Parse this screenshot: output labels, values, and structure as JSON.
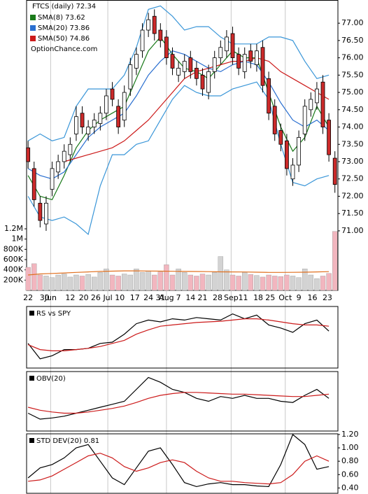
{
  "chart_data": [
    {
      "type": "candlestick",
      "title": "FTCS (daily) 72.34",
      "annotation": "OptionChance.com",
      "x": [
        0,
        2,
        4,
        6,
        8,
        10,
        12,
        14,
        16,
        18,
        20,
        22,
        24,
        26,
        28,
        30,
        32,
        34,
        36,
        38,
        40,
        42,
        44,
        46,
        48,
        50,
        52,
        54,
        56,
        58,
        60,
        62,
        64,
        66,
        68,
        70,
        72,
        74,
        76,
        78,
        80,
        82,
        84,
        86,
        88,
        90,
        92,
        94,
        96,
        98,
        100,
        102
      ],
      "open": [
        73.4,
        72.8,
        71.8,
        71.2,
        72.2,
        72.7,
        73.0,
        73.2,
        73.8,
        74.4,
        73.8,
        74.0,
        74.1,
        74.4,
        75.1,
        74.6,
        74.2,
        75.1,
        75.7,
        76.2,
        76.8,
        77.2,
        76.8,
        76.6,
        76.1,
        75.5,
        75.6,
        76.0,
        75.7,
        75.5,
        75.0,
        75.6,
        76.0,
        76.2,
        76.7,
        76.1,
        75.6,
        76.2,
        75.8,
        76.3,
        75.4,
        74.6,
        73.9,
        73.6,
        72.5,
        72.9,
        73.8,
        74.5,
        74.7,
        75.3,
        74.2,
        73.1
      ],
      "high": [
        73.6,
        73.0,
        72.0,
        72.0,
        73.0,
        73.2,
        73.5,
        73.7,
        74.6,
        74.6,
        74.2,
        74.4,
        74.6,
        75.1,
        75.3,
        74.8,
        75.2,
        76.0,
        76.3,
        77.0,
        77.3,
        77.4,
        77.0,
        76.8,
        76.3,
        75.9,
        76.1,
        76.2,
        75.9,
        75.7,
        75.8,
        76.2,
        76.5,
        76.8,
        76.9,
        76.3,
        76.3,
        76.4,
        76.4,
        76.5,
        75.6,
        74.8,
        74.1,
        73.8,
        73.1,
        73.9,
        74.8,
        75.0,
        75.3,
        75.5,
        74.4,
        73.3
      ],
      "low": [
        72.8,
        71.7,
        71.1,
        71.0,
        72.0,
        72.5,
        72.8,
        73.0,
        73.6,
        73.8,
        73.6,
        73.8,
        73.9,
        74.2,
        74.6,
        73.8,
        74.0,
        74.9,
        75.5,
        76.0,
        76.6,
        76.5,
        76.3,
        75.8,
        75.5,
        75.3,
        75.4,
        75.4,
        75.2,
        74.9,
        74.8,
        75.4,
        75.8,
        76.0,
        75.8,
        75.5,
        75.4,
        75.7,
        75.6,
        75.0,
        74.2,
        73.6,
        73.3,
        72.6,
        72.3,
        72.7,
        73.6,
        74.3,
        74.5,
        73.8,
        73.0,
        72.1
      ],
      "close": [
        73.0,
        71.9,
        71.3,
        71.8,
        72.8,
        73.0,
        73.3,
        73.5,
        74.3,
        74.0,
        74.0,
        74.2,
        74.4,
        74.9,
        74.8,
        74.0,
        75.0,
        75.8,
        76.1,
        76.8,
        77.1,
        76.7,
        76.5,
        76.0,
        75.7,
        75.7,
        75.9,
        75.6,
        75.4,
        75.1,
        75.6,
        76.0,
        76.3,
        76.6,
        76.0,
        75.7,
        76.1,
        75.9,
        76.2,
        75.2,
        74.4,
        73.8,
        73.5,
        72.8,
        72.9,
        73.7,
        74.6,
        74.8,
        75.1,
        74.0,
        73.2,
        72.34
      ],
      "up_color": "#ffffff",
      "down_color": "#cc2a2a",
      "overlays": [
        {
          "name": "SMA(8) 73.62",
          "color": "#1a7a1a",
          "x": [
            0,
            4,
            8,
            12,
            16,
            20,
            24,
            28,
            32,
            36,
            40,
            44,
            48,
            52,
            56,
            60,
            64,
            68,
            72,
            76,
            80,
            84,
            88,
            92,
            96,
            100
          ],
          "values": [
            72.6,
            72.0,
            71.9,
            72.6,
            73.4,
            73.9,
            74.2,
            74.4,
            74.6,
            75.4,
            76.2,
            76.6,
            76.1,
            75.7,
            75.6,
            75.4,
            75.8,
            76.2,
            76.0,
            76.0,
            75.0,
            74.0,
            73.3,
            73.7,
            74.6,
            74.0
          ]
        },
        {
          "name": "SMA(20) 73.86",
          "color": "#2a6fd0",
          "x": [
            0,
            4,
            8,
            12,
            16,
            20,
            24,
            28,
            32,
            36,
            40,
            44,
            48,
            52,
            56,
            60,
            64,
            68,
            72,
            76,
            80,
            84,
            88,
            92,
            96,
            100
          ],
          "values": [
            72.8,
            72.6,
            72.5,
            72.7,
            73.2,
            73.7,
            74.0,
            74.2,
            74.4,
            74.9,
            75.5,
            75.9,
            76.2,
            76.1,
            75.9,
            75.7,
            75.6,
            75.8,
            75.9,
            75.8,
            75.3,
            74.7,
            74.2,
            74.0,
            74.2,
            73.9
          ]
        },
        {
          "name": "SMA(50) 74.86",
          "color": "#cc1a1a",
          "x": [
            0,
            4,
            8,
            12,
            16,
            20,
            24,
            28,
            32,
            36,
            40,
            44,
            48,
            52,
            56,
            60,
            64,
            68,
            72,
            76,
            80,
            84,
            88,
            92,
            96,
            100
          ],
          "values": [
            null,
            null,
            null,
            73.0,
            73.1,
            73.2,
            73.3,
            73.4,
            73.6,
            73.9,
            74.2,
            74.6,
            75.0,
            75.4,
            75.6,
            75.7,
            75.8,
            75.9,
            75.9,
            76.0,
            75.9,
            75.6,
            75.4,
            75.2,
            75.0,
            74.8
          ]
        },
        {
          "color": "#3a96d8",
          "x": [
            0,
            4,
            8,
            12,
            16,
            20,
            24,
            28,
            32,
            36,
            40,
            44,
            48,
            52,
            56,
            60,
            64,
            68,
            72,
            76,
            80,
            84,
            88,
            92,
            96,
            100
          ],
          "values": [
            73.6,
            73.8,
            73.6,
            73.7,
            74.6,
            75.1,
            75.1,
            75.1,
            75.5,
            76.3,
            77.4,
            77.5,
            77.2,
            76.8,
            76.9,
            76.9,
            76.6,
            76.4,
            76.4,
            76.4,
            76.6,
            76.6,
            76.5,
            75.9,
            75.4,
            75.5
          ]
        },
        {
          "color": "#3a96d8",
          "x": [
            0,
            4,
            8,
            12,
            16,
            20,
            24,
            28,
            32,
            36,
            40,
            44,
            48,
            52,
            56,
            60,
            64,
            68,
            72,
            76,
            80,
            84,
            88,
            92,
            96,
            100
          ],
          "values": [
            72.0,
            71.4,
            71.3,
            71.4,
            71.2,
            70.9,
            72.3,
            73.2,
            73.2,
            73.5,
            73.6,
            74.2,
            74.8,
            75.2,
            75.0,
            74.9,
            74.9,
            75.1,
            75.2,
            75.3,
            74.8,
            73.5,
            72.4,
            72.3,
            72.5,
            72.6
          ]
        }
      ],
      "xlim": [
        -0.5,
        103
      ],
      "xticks": [
        {
          "value": 0,
          "label": "22"
        },
        {
          "value": 5.5,
          "label": "30"
        },
        {
          "value": 7.5,
          "label": "Jun"
        },
        {
          "value": 14,
          "label": "12"
        },
        {
          "value": 18.5,
          "label": "20"
        },
        {
          "value": 22.5,
          "label": "26"
        },
        {
          "value": 26.5,
          "label": "Jul"
        },
        {
          "value": 30.5,
          "label": "10"
        },
        {
          "value": 35.5,
          "label": "17"
        },
        {
          "value": 40,
          "label": "24"
        },
        {
          "value": 44,
          "label": "31"
        },
        {
          "value": 46,
          "label": "Aug"
        },
        {
          "value": 50,
          "label": "7"
        },
        {
          "value": 54,
          "label": "14"
        },
        {
          "value": 58,
          "label": "21"
        },
        {
          "value": 63,
          "label": "28"
        },
        {
          "value": 67.5,
          "label": "Sep"
        },
        {
          "value": 71.5,
          "label": "11"
        },
        {
          "value": 76.5,
          "label": "18"
        },
        {
          "value": 80.5,
          "label": "25"
        },
        {
          "value": 85.5,
          "label": "Oct"
        },
        {
          "value": 90,
          "label": "9"
        },
        {
          "value": 94.5,
          "label": "16"
        },
        {
          "value": 99.5,
          "label": "23"
        }
      ],
      "ylim": [
        69.28,
        77.67
      ],
      "yticks": [
        {
          "value": 71,
          "label": "71.00"
        },
        {
          "value": 71.5,
          "label": "71.50"
        },
        {
          "value": 72,
          "label": "72.00"
        },
        {
          "value": 72.5,
          "label": "72.50"
        },
        {
          "value": 73,
          "label": "73.00"
        },
        {
          "value": 73.5,
          "label": "73.50"
        },
        {
          "value": 74,
          "label": "74.00"
        },
        {
          "value": 74.5,
          "label": "74.50"
        },
        {
          "value": 75,
          "label": "75.00"
        },
        {
          "value": 75.5,
          "label": "75.50"
        },
        {
          "value": 76,
          "label": "76.00"
        },
        {
          "value": 76.5,
          "label": "76.50"
        },
        {
          "value": 77,
          "label": "77.00"
        }
      ]
    },
    {
      "type": "bar",
      "x": [
        0,
        2,
        4,
        6,
        8,
        10,
        12,
        14,
        16,
        18,
        20,
        22,
        24,
        26,
        28,
        30,
        32,
        34,
        36,
        38,
        40,
        42,
        44,
        46,
        48,
        50,
        52,
        54,
        56,
        58,
        60,
        62,
        64,
        66,
        68,
        70,
        72,
        74,
        76,
        78,
        80,
        82,
        84,
        86,
        88,
        90,
        92,
        94,
        96,
        98,
        100,
        102
      ],
      "values": [
        450000,
        520000,
        300000,
        280000,
        250000,
        300000,
        320000,
        260000,
        300000,
        280000,
        310000,
        260000,
        350000,
        420000,
        300000,
        280000,
        320000,
        300000,
        420000,
        350000,
        380000,
        300000,
        360000,
        500000,
        300000,
        420000,
        350000,
        300000,
        280000,
        320000,
        300000,
        350000,
        660000,
        400000,
        300000,
        280000,
        350000,
        310000,
        290000,
        260000,
        300000,
        280000,
        270000,
        300000,
        280000,
        250000,
        420000,
        300000,
        230000,
        280000,
        330000,
        1150000
      ],
      "up_color": "#d3d3d3",
      "down_color": "#f2b6bf",
      "average": {
        "color": "#e07020",
        "x": [
          0,
          4,
          8,
          12,
          16,
          20,
          24,
          28,
          32,
          36,
          40,
          44,
          48,
          52,
          56,
          60,
          64,
          68,
          72,
          76,
          80,
          84,
          88,
          92,
          96,
          100
        ],
        "values": [
          300000,
          320000,
          330000,
          340000,
          350000,
          360000,
          370000,
          375000,
          380000,
          380000,
          378000,
          375000,
          372000,
          370000,
          368000,
          365000,
          362000,
          360000,
          358000,
          355000,
          350000,
          350000,
          352000,
          355000,
          360000,
          365000
        ]
      },
      "ylim": [
        0,
        1200000
      ],
      "yticks": [
        {
          "value": 200000,
          "label": "200K"
        },
        {
          "value": 400000,
          "label": "400K"
        },
        {
          "value": 600000,
          "label": "600K"
        },
        {
          "value": 800000,
          "label": "800K"
        },
        {
          "value": 1000000,
          "label": "1M"
        },
        {
          "value": 1200000,
          "label": "1.2M"
        }
      ]
    },
    {
      "type": "line",
      "title": "RS vs SPY",
      "ylim": [
        0,
        100
      ],
      "x": [
        0,
        4,
        8,
        12,
        16,
        20,
        24,
        28,
        32,
        36,
        40,
        44,
        48,
        52,
        56,
        60,
        64,
        68,
        72,
        76,
        80,
        84,
        88,
        92,
        96,
        100
      ],
      "series": [
        {
          "color": "#000000",
          "values": [
            40,
            15,
            20,
            30,
            30,
            32,
            40,
            42,
            55,
            72,
            78,
            75,
            80,
            78,
            82,
            80,
            78,
            88,
            80,
            86,
            70,
            65,
            58,
            72,
            78,
            60
          ]
        },
        {
          "color": "#cc1a1a",
          "values": [
            38,
            30,
            28,
            28,
            30,
            32,
            35,
            40,
            45,
            55,
            62,
            68,
            70,
            72,
            74,
            75,
            76,
            78,
            80,
            80,
            78,
            75,
            72,
            70,
            70,
            68
          ]
        }
      ]
    },
    {
      "type": "line",
      "title": "OBV(20)",
      "ylim": [
        0,
        100
      ],
      "x": [
        0,
        4,
        8,
        12,
        16,
        20,
        24,
        28,
        32,
        36,
        40,
        44,
        48,
        52,
        56,
        60,
        64,
        68,
        72,
        76,
        80,
        84,
        88,
        92,
        96,
        100
      ],
      "series": [
        {
          "color": "#000000",
          "values": [
            30,
            20,
            22,
            25,
            30,
            35,
            40,
            45,
            50,
            70,
            90,
            82,
            70,
            65,
            55,
            50,
            58,
            55,
            60,
            55,
            55,
            50,
            48,
            60,
            70,
            55
          ]
        },
        {
          "color": "#cc1a1a",
          "values": [
            40,
            35,
            32,
            30,
            30,
            32,
            35,
            38,
            42,
            48,
            55,
            60,
            63,
            65,
            65,
            64,
            63,
            62,
            62,
            61,
            60,
            59,
            58,
            58,
            60,
            62
          ]
        }
      ]
    },
    {
      "type": "line",
      "title": "STD DEV(20) 0.81",
      "ylim": [
        0.32,
        1.21
      ],
      "yticks": [
        {
          "value": 0.4,
          "label": "0.40"
        },
        {
          "value": 0.6,
          "label": "0.60"
        },
        {
          "value": 0.8,
          "label": "0.80"
        },
        {
          "value": 1.0,
          "label": "1.00"
        },
        {
          "value": 1.2,
          "label": "1.20"
        }
      ],
      "x": [
        0,
        4,
        8,
        12,
        16,
        20,
        24,
        28,
        32,
        36,
        40,
        44,
        48,
        52,
        56,
        60,
        64,
        68,
        72,
        76,
        80,
        84,
        88,
        92,
        96,
        100
      ],
      "series": [
        {
          "color": "#000000",
          "values": [
            0.55,
            0.7,
            0.75,
            0.85,
            1.0,
            1.05,
            0.8,
            0.55,
            0.45,
            0.7,
            0.95,
            1.0,
            0.75,
            0.48,
            0.42,
            0.46,
            0.48,
            0.45,
            0.45,
            0.43,
            0.42,
            0.75,
            1.2,
            1.05,
            0.68,
            0.72
          ]
        },
        {
          "color": "#cc1a1a",
          "values": [
            0.5,
            0.52,
            0.58,
            0.68,
            0.78,
            0.88,
            0.92,
            0.85,
            0.72,
            0.65,
            0.7,
            0.78,
            0.82,
            0.78,
            0.65,
            0.55,
            0.5,
            0.5,
            0.48,
            0.47,
            0.46,
            0.48,
            0.6,
            0.8,
            0.88,
            0.8
          ]
        }
      ]
    }
  ]
}
